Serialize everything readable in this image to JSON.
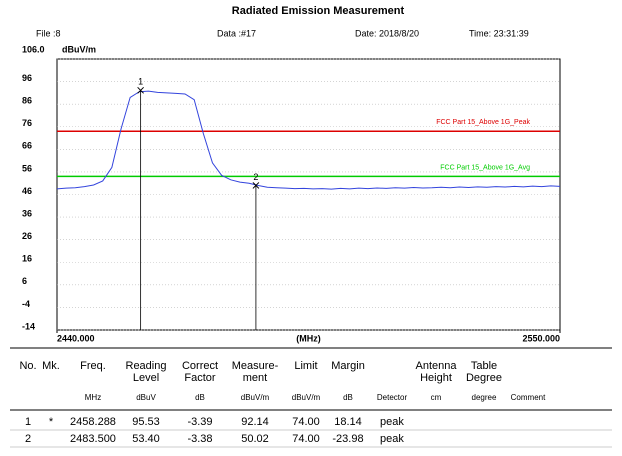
{
  "chart_data": {
    "type": "line",
    "title": "Radiated Emission Measurement",
    "x_label": "(MHz)",
    "y_unit": "dBuV/m",
    "xlim": [
      2440,
      2550
    ],
    "xticks": [
      {
        "value": 2440,
        "label": "2440.000"
      },
      {
        "value": 2550,
        "label": "2550.000"
      }
    ],
    "ylim": [
      -14,
      106
    ],
    "yticks": [
      {
        "value": 106,
        "label": "106.0"
      },
      96,
      86,
      76,
      66,
      56,
      46,
      36,
      26,
      16,
      6,
      -4,
      -14
    ],
    "grid": true,
    "x": [
      2440,
      2442,
      2444,
      2446,
      2448,
      2450,
      2452,
      2454,
      2456,
      2458,
      2460,
      2462,
      2464,
      2466,
      2468,
      2470,
      2472,
      2474,
      2476,
      2478,
      2480,
      2482,
      2484,
      2486,
      2488,
      2490,
      2492,
      2494,
      2496,
      2498,
      2500,
      2502,
      2504,
      2506,
      2508,
      2510,
      2512,
      2514,
      2516,
      2518,
      2520,
      2522,
      2524,
      2526,
      2528,
      2530,
      2532,
      2534,
      2536,
      2538,
      2540,
      2542,
      2544,
      2546,
      2548,
      2550
    ],
    "series": [
      {
        "color": "#3344dd",
        "values": [
          48.5,
          48.8,
          49.0,
          49.5,
          50.2,
          52.0,
          58,
          75,
          89,
          91.5,
          91.8,
          91.2,
          91.0,
          90.8,
          90.5,
          88,
          73,
          60,
          54.5,
          52.5,
          51.5,
          51,
          50,
          49.2,
          49,
          48.8,
          48.6,
          48.7,
          48.5,
          48.6,
          48.4,
          48.7,
          48.5,
          48.8,
          48.6,
          48.9,
          48.7,
          49.0,
          48.8,
          49.1,
          48.9,
          49.0,
          49.2,
          49.0,
          49.3,
          49.1,
          49.4,
          49.2,
          49.5,
          49.3,
          49.6,
          49.4,
          49.7,
          49.5,
          49.8,
          49.6
        ]
      }
    ],
    "limits": [
      {
        "name": "FCC Part 15_Above 1G_Peak",
        "value": 74,
        "color": "#dd0000"
      },
      {
        "name": "FCC Part 15_Above 1G_Avg",
        "value": 54,
        "color": "#00cc00"
      }
    ],
    "markers": [
      {
        "label": "1",
        "x": 2458.288,
        "y": 92.14
      },
      {
        "label": "2",
        "x": 2483.5,
        "y": 50.02
      }
    ]
  },
  "header": {
    "file": "File :8",
    "data": "Data :#17",
    "date": "Date: 2018/8/20",
    "time": "Time: 23:31:39"
  },
  "table": {
    "columns": [
      {
        "key": "no",
        "title": [
          "No."
        ]
      },
      {
        "key": "mk",
        "title": [
          "Mk."
        ]
      },
      {
        "key": "freq",
        "title": [
          "Freq."
        ],
        "unit": "MHz"
      },
      {
        "key": "reading",
        "title": [
          "Reading",
          "Level"
        ],
        "unit": "dBuV"
      },
      {
        "key": "factor",
        "title": [
          "Correct",
          "Factor"
        ],
        "unit": "dB"
      },
      {
        "key": "measure",
        "title": [
          "Measure-",
          "ment"
        ],
        "unit": "dBuV/m"
      },
      {
        "key": "limit",
        "title": [
          "Limit"
        ],
        "unit": "dBuV/m"
      },
      {
        "key": "margin",
        "title": [
          "Margin"
        ],
        "unit": "dB"
      },
      {
        "key": "detector",
        "unit": "Detector"
      },
      {
        "key": "height",
        "title": [
          "Antenna",
          "Height"
        ],
        "unit": "cm"
      },
      {
        "key": "degree",
        "title": [
          "Table",
          "Degree"
        ],
        "unit": "degree"
      },
      {
        "key": "comment",
        "unit": "Comment"
      }
    ],
    "rows": [
      {
        "no": "1",
        "mk": "*",
        "freq": "2458.288",
        "reading": "95.53",
        "factor": "-3.39",
        "measure": "92.14",
        "limit": "74.00",
        "margin": "18.14",
        "detector": "peak"
      },
      {
        "no": "2",
        "freq": "2483.500",
        "reading": "53.40",
        "factor": "-3.38",
        "measure": "50.02",
        "limit": "74.00",
        "margin": "-23.98",
        "detector": "peak"
      }
    ]
  }
}
